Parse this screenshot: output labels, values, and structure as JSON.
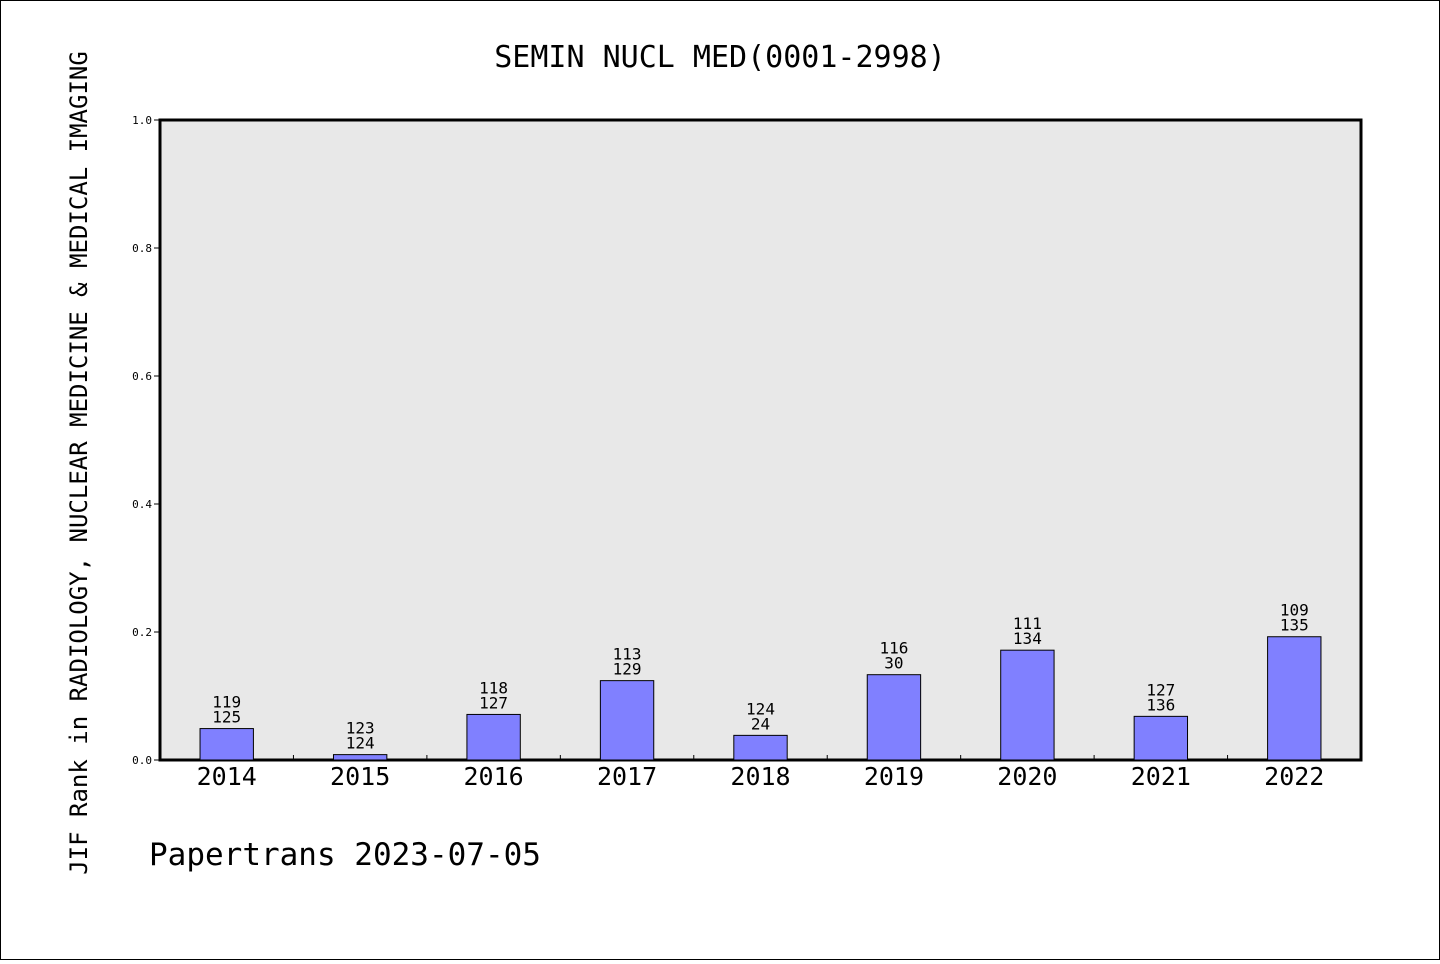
{
  "chart_data": {
    "type": "bar",
    "title": "SEMIN NUCL MED(0001-2998)",
    "xlabel": "",
    "ylabel": "JIF Rank in RADIOLOGY, NUCLEAR MEDICINE & MEDICAL IMAGING",
    "ylim": [
      0,
      1.0
    ],
    "yticks": [
      "0.0",
      "0.2",
      "0.4",
      "0.6",
      "0.8",
      "1.0"
    ],
    "categories": [
      "2014",
      "2015",
      "2016",
      "2017",
      "2018",
      "2019",
      "2020",
      "2021",
      "2022"
    ],
    "values": [
      0.0491,
      0.0084,
      0.0712,
      0.124,
      0.0385,
      0.1333,
      0.1716,
      0.0682,
      0.1926
    ],
    "labels_top": [
      "119",
      "123",
      "118",
      "113",
      "124",
      "116",
      "111",
      "127",
      "109"
    ],
    "labels_bottom": [
      "125",
      "124",
      "127",
      "129",
      "24",
      "30",
      "134",
      "136",
      "135"
    ],
    "grid": false,
    "legend": "none",
    "colors": {
      "bar_fill": "#8080ff",
      "bar_stroke": "#000000",
      "plot_background": "#e8e8e8"
    }
  },
  "footer": {
    "text": "Papertrans 2023-07-05"
  }
}
